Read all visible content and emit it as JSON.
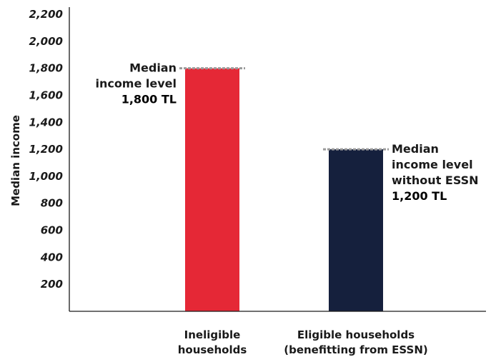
{
  "chart_data": {
    "type": "bar",
    "ylabel": "Median income",
    "ylim": [
      0,
      2200
    ],
    "yticks": [
      200,
      400,
      600,
      800,
      1000,
      1200,
      1400,
      1600,
      1800,
      2000,
      2200
    ],
    "ytick_labels": [
      "200",
      "400",
      "600",
      "800",
      "1,000",
      "1,200",
      "1,400",
      "1,600",
      "1,800",
      "2,000",
      "2,200"
    ],
    "categories": [
      [
        "Ineligible",
        "households"
      ],
      [
        "Eligible households",
        "(benefitting from ESSN)"
      ]
    ],
    "values": [
      1800,
      1200
    ],
    "colors": [
      "#e52836",
      "#15203d"
    ],
    "reference_line_color": "#9a9a9a",
    "annotations": [
      {
        "lines": [
          "Median",
          "income level"
        ],
        "value_label": "1,800 TL",
        "align": "right"
      },
      {
        "lines": [
          "Median",
          "income level",
          "without ESSN"
        ],
        "value_label": "1,200 TL",
        "align": "left"
      }
    ]
  }
}
